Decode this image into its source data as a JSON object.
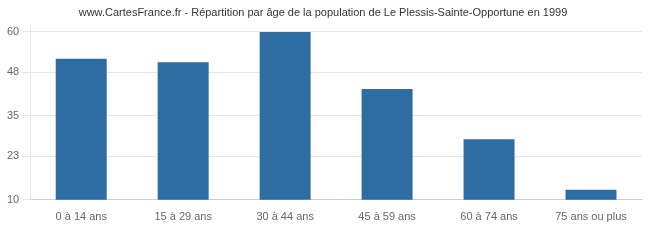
{
  "chart_data": {
    "type": "bar",
    "title": "www.CartesFrance.fr - Répartition par âge de la population de Le Plessis-Sainte-Opportune en 1999",
    "categories": [
      "0 à 14 ans",
      "15 à 29 ans",
      "30 à 44 ans",
      "45 à 59 ans",
      "60 à 74 ans",
      "75 ans ou plus"
    ],
    "values": [
      52,
      51,
      60,
      43,
      28,
      13
    ],
    "color": "#2e6da4",
    "ylim": [
      10,
      62
    ],
    "yticks": [
      10,
      23,
      35,
      48,
      60
    ],
    "grid": true
  }
}
